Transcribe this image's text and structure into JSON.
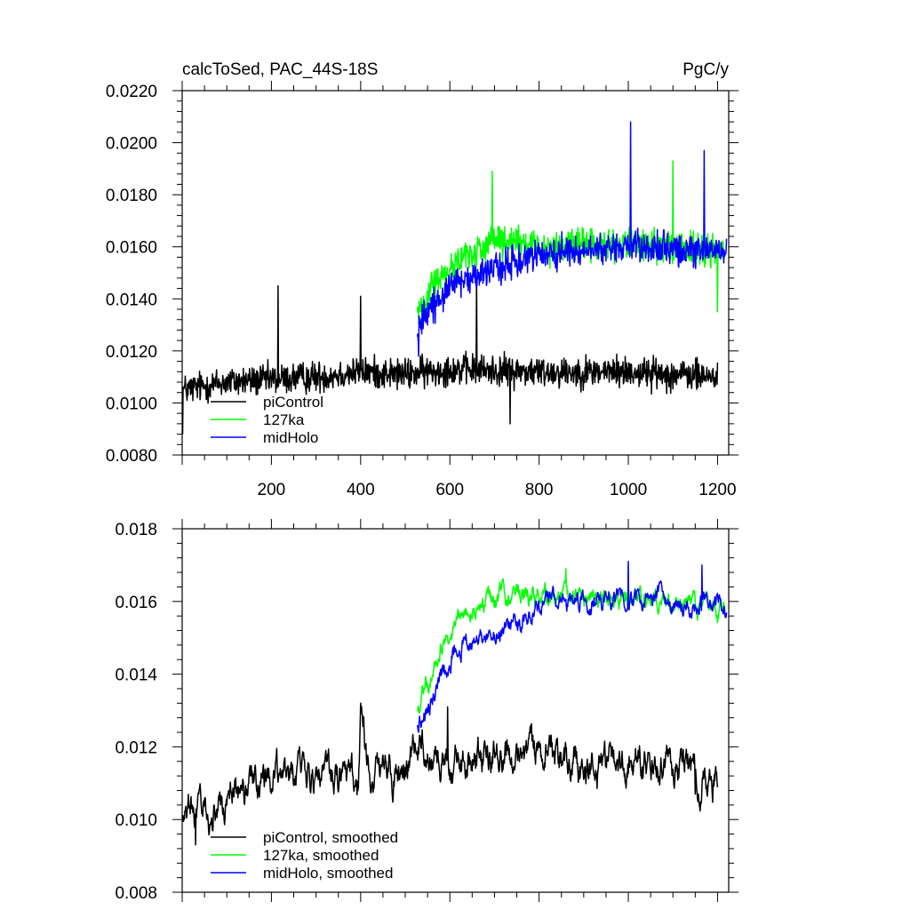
{
  "chart_data": [
    {
      "type": "line",
      "title": "calcToSed, PAC_44S-18S",
      "units": "PgC/y",
      "xlim": [
        0,
        1225
      ],
      "ylim": [
        0.008,
        0.022
      ],
      "x_ticks": [
        200,
        400,
        600,
        800,
        1000,
        1200
      ],
      "x_tick_labels": [
        "200",
        "400",
        "600",
        "800",
        "1000",
        "1200"
      ],
      "y_ticks": [
        0.008,
        0.01,
        0.012,
        0.014,
        0.016,
        0.018,
        0.02,
        0.022
      ],
      "y_tick_labels": [
        "0.0080",
        "0.0100",
        "0.0120",
        "0.0140",
        "0.0160",
        "0.0180",
        "0.0200",
        "0.0220"
      ],
      "grid": false,
      "legend_position": "bottom-left",
      "series": [
        {
          "name": "piControl",
          "color": "#000000",
          "x_start": 1,
          "x_end": 1200,
          "segments": [
            [
              1,
              0.0105
            ],
            [
              100,
              0.0108
            ],
            [
              300,
              0.011
            ],
            [
              400,
              0.0112
            ],
            [
              500,
              0.0111
            ],
            [
              600,
              0.0113
            ],
            [
              800,
              0.0112
            ],
            [
              1000,
              0.0112
            ],
            [
              1200,
              0.011
            ]
          ],
          "noise_amplitude": 0.0009,
          "extremes": [
            [
              1,
              0.0088
            ],
            [
              215,
              0.0145
            ],
            [
              400,
              0.0141
            ],
            [
              660,
              0.0148
            ],
            [
              735,
              0.0092
            ]
          ]
        },
        {
          "name": "127ka",
          "color": "#00ff00",
          "x_start": 527,
          "x_end": 1215,
          "segments": [
            [
              527,
              0.0135
            ],
            [
              560,
              0.0145
            ],
            [
              620,
              0.0155
            ],
            [
              700,
              0.0162
            ],
            [
              800,
              0.016
            ],
            [
              1000,
              0.0161
            ],
            [
              1215,
              0.0158
            ]
          ],
          "noise_amplitude": 0.0009,
          "extremes": [
            [
              695,
              0.0189
            ],
            [
              1100,
              0.0193
            ],
            [
              1200,
              0.0135
            ]
          ]
        },
        {
          "name": "midHolo",
          "color": "#0000ff",
          "x_start": 527,
          "x_end": 1220,
          "segments": [
            [
              527,
              0.0128
            ],
            [
              560,
              0.0138
            ],
            [
              620,
              0.0146
            ],
            [
              700,
              0.0151
            ],
            [
              800,
              0.0157
            ],
            [
              1000,
              0.016
            ],
            [
              1220,
              0.0158
            ]
          ],
          "noise_amplitude": 0.0009,
          "extremes": [
            [
              1005,
              0.0208
            ],
            [
              1170,
              0.0197
            ],
            [
              530,
              0.0118
            ]
          ]
        }
      ]
    },
    {
      "type": "line",
      "title": "",
      "xlim": [
        0,
        1225
      ],
      "ylim": [
        0.008,
        0.018
      ],
      "x_ticks": [
        200,
        400,
        600,
        800,
        1000,
        1200
      ],
      "y_ticks": [
        0.008,
        0.01,
        0.012,
        0.014,
        0.016,
        0.018
      ],
      "y_tick_labels": [
        "0.008",
        "0.010",
        "0.012",
        "0.014",
        "0.016",
        "0.018"
      ],
      "grid": false,
      "legend_position": "bottom-left",
      "series": [
        {
          "name": "piControl, smoothed",
          "color": "#000000",
          "x_start": 1,
          "x_end": 1200,
          "segments": [
            [
              1,
              0.01
            ],
            [
              20,
              0.0103
            ],
            [
              50,
              0.0103
            ],
            [
              100,
              0.0106
            ],
            [
              200,
              0.0112
            ],
            [
              300,
              0.0113
            ],
            [
              395,
              0.011
            ],
            [
              400,
              0.0125
            ],
            [
              420,
              0.0112
            ],
            [
              500,
              0.0112
            ],
            [
              530,
              0.012
            ],
            [
              600,
              0.0115
            ],
            [
              700,
              0.0118
            ],
            [
              800,
              0.0118
            ],
            [
              900,
              0.0113
            ],
            [
              1000,
              0.0116
            ],
            [
              1100,
              0.0115
            ],
            [
              1200,
              0.011
            ]
          ],
          "noise_amplitude": 0.0007,
          "extremes": [
            [
              400,
              0.0132
            ],
            [
              595,
              0.0131
            ],
            [
              1150,
              0.0107
            ],
            [
              30,
              0.0093
            ]
          ]
        },
        {
          "name": "127ka, smoothed",
          "color": "#00ff00",
          "x_start": 527,
          "x_end": 1215,
          "segments": [
            [
              527,
              0.013
            ],
            [
              550,
              0.0138
            ],
            [
              580,
              0.0148
            ],
            [
              620,
              0.0155
            ],
            [
              700,
              0.0161
            ],
            [
              800,
              0.0161
            ],
            [
              900,
              0.0161
            ],
            [
              1000,
              0.0161
            ],
            [
              1100,
              0.016
            ],
            [
              1215,
              0.0157
            ]
          ],
          "noise_amplitude": 0.0004,
          "extremes": [
            [
              860,
              0.0169
            ],
            [
              1000,
              0.017
            ]
          ]
        },
        {
          "name": "midHolo, smoothed",
          "color": "#0000ff",
          "x_start": 527,
          "x_end": 1220,
          "segments": [
            [
              527,
              0.0126
            ],
            [
              550,
              0.013
            ],
            [
              580,
              0.014
            ],
            [
              620,
              0.0148
            ],
            [
              700,
              0.0151
            ],
            [
              760,
              0.0155
            ],
            [
              800,
              0.0159
            ],
            [
              900,
              0.0161
            ],
            [
              1000,
              0.0162
            ],
            [
              1100,
              0.016
            ],
            [
              1220,
              0.0158
            ]
          ],
          "noise_amplitude": 0.0004,
          "extremes": [
            [
              1000,
              0.0171
            ],
            [
              1165,
              0.017
            ],
            [
              530,
              0.0124
            ]
          ]
        }
      ]
    }
  ]
}
